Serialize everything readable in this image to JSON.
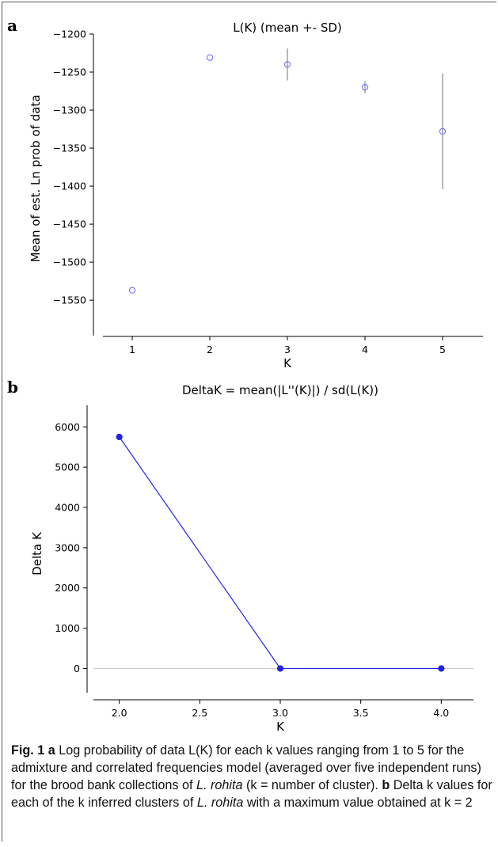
{
  "chart_data": [
    {
      "panel": "a",
      "type": "scatter",
      "title": "L(K) (mean +- SD)",
      "xlabel": "K",
      "ylabel": "Mean of est. Ln prob of data",
      "x": [
        1,
        2,
        3,
        4,
        5
      ],
      "y": [
        -1537,
        -1231,
        -1240,
        -1270,
        -1328
      ],
      "sd": [
        0,
        0,
        21,
        8,
        76
      ],
      "xlim": [
        0.5,
        5.5
      ],
      "ylim": [
        -1580,
        -1200
      ],
      "xticks": [
        "1",
        "2",
        "3",
        "4",
        "5"
      ],
      "yticks": [
        "-1200",
        "-1250",
        "-1300",
        "-1350",
        "-1400",
        "-1450",
        "-1500",
        "-1550"
      ],
      "marker": "open-circle",
      "color": "#7b7bff",
      "errorbar_color": "#888888"
    },
    {
      "panel": "b",
      "type": "line",
      "title": "DeltaK = mean(|L''(K)|) / sd(L(K))",
      "xlabel": "K",
      "ylabel": "Delta K",
      "x": [
        2.0,
        3.0,
        4.0
      ],
      "y": [
        5750,
        0,
        0
      ],
      "xlim": [
        1.8,
        4.2
      ],
      "ylim": [
        -600,
        6300
      ],
      "xticks": [
        "2.0",
        "2.5",
        "3.0",
        "3.5",
        "4.0"
      ],
      "yticks": [
        "6000",
        "5000",
        "4000",
        "3000",
        "2000",
        "1000",
        "0"
      ],
      "color": "#2323e6",
      "zero_line": true
    }
  ],
  "caption": {
    "label": "Fig. 1",
    "part_a_letter": "a",
    "part_a_text_1": " Log probability of data L(K) for each k values ranging from 1 to 5 for the admixture and correlated frequencies model (averaged over five independent runs) for the brood bank collections of ",
    "species": "L. rohita",
    "part_a_text_2": " (k = number of cluster). ",
    "part_b_letter": "b",
    "part_b_text_1": " Delta k values for each of the k inferred clusters of ",
    "part_b_text_2": " with a maximum value obtained at k = 2"
  },
  "panel_letters": [
    "a",
    "b"
  ]
}
